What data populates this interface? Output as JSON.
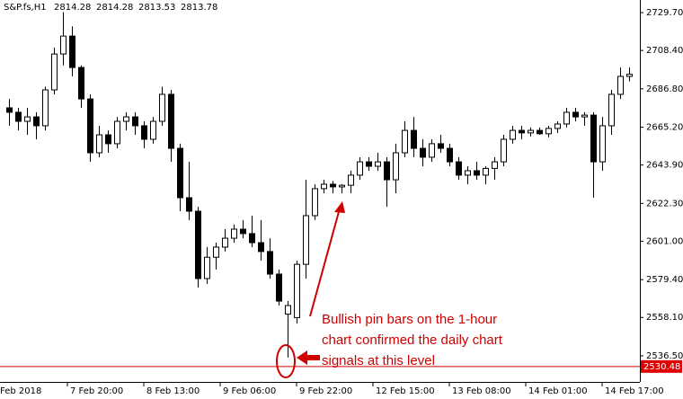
{
  "chart_data": {
    "type": "candlestick",
    "symbol": "S&P.fs,H1",
    "header_values": [
      2814.28,
      2814.28,
      2813.53,
      2813.78
    ],
    "open": [
      2676.1,
      2673.6,
      2668.5,
      2671.0,
      2666.0,
      2686.2,
      2706.4,
      2716.5,
      2698.8,
      2681.1,
      2650.8,
      2660.9,
      2655.9,
      2668.5,
      2671.0,
      2666.0,
      2658.4,
      2668.5,
      2683.7,
      2653.3,
      2625.5,
      2617.9,
      2580.0,
      2592.0,
      2597.7,
      2602.7,
      2607.8,
      2605.3,
      2600.2,
      2595.2,
      2582.5,
      2560.0,
      2558.0,
      2588.0,
      2615.4,
      2630.6,
      2633.1,
      2631.6,
      2632.5,
      2638.2,
      2645.7,
      2643.2,
      2645.7,
      2635.6,
      2650.8,
      2663.4,
      2653.3,
      2648.3,
      2655.9,
      2653.3,
      2645.7,
      2638.2,
      2640.7,
      2638.2,
      2642.0,
      2645.7,
      2658.4,
      2663.4,
      2662.0,
      2663.4,
      2661.5,
      2664.5,
      2667.0,
      2673.6,
      2671.0,
      2672.0,
      2645.7,
      2666.0,
      2683.7,
      2693.8
    ],
    "high": [
      2681.1,
      2676.1,
      2676.1,
      2673.6,
      2688.0,
      2710.0,
      2730.0,
      2722.0,
      2700.0,
      2683.7,
      2666.0,
      2663.4,
      2671.0,
      2673.6,
      2673.6,
      2668.5,
      2671.0,
      2688.0,
      2686.2,
      2655.9,
      2645.7,
      2620.4,
      2597.7,
      2600.2,
      2607.8,
      2610.3,
      2612.9,
      2615.4,
      2612.9,
      2602.7,
      2585.1,
      2567.3,
      2590.0,
      2635.6,
      2633.1,
      2635.6,
      2635.0,
      2633.1,
      2640.7,
      2648.3,
      2648.3,
      2650.8,
      2648.3,
      2655.9,
      2668.5,
      2671.0,
      2658.4,
      2658.4,
      2660.9,
      2655.9,
      2648.3,
      2643.2,
      2645.7,
      2643.2,
      2648.3,
      2660.9,
      2666.0,
      2666.0,
      2665.0,
      2665.0,
      2666.0,
      2668.5,
      2676.1,
      2676.1,
      2673.6,
      2673.6,
      2671.0,
      2686.2,
      2698.8,
      2698.8
    ],
    "low": [
      2666.0,
      2663.4,
      2660.9,
      2658.4,
      2663.4,
      2683.7,
      2700.0,
      2693.8,
      2676.1,
      2645.7,
      2648.3,
      2650.8,
      2653.3,
      2663.4,
      2660.9,
      2653.3,
      2655.9,
      2666.0,
      2645.7,
      2617.9,
      2612.9,
      2574.9,
      2577.0,
      2585.1,
      2595.2,
      2600.2,
      2602.7,
      2597.7,
      2590.1,
      2580.0,
      2564.8,
      2535.5,
      2554.7,
      2580.0,
      2612.9,
      2628.0,
      2628.0,
      2628.0,
      2628.0,
      2635.6,
      2640.7,
      2640.7,
      2620.4,
      2628.0,
      2648.3,
      2648.3,
      2643.2,
      2645.7,
      2650.8,
      2643.2,
      2635.6,
      2633.1,
      2635.6,
      2633.1,
      2635.6,
      2643.2,
      2655.9,
      2658.4,
      2660.0,
      2660.9,
      2659.5,
      2662.0,
      2665.0,
      2668.5,
      2666.0,
      2625.5,
      2640.7,
      2660.9,
      2681.1,
      2691.0
    ],
    "close": [
      2673.6,
      2668.5,
      2671.0,
      2666.0,
      2686.2,
      2706.4,
      2716.5,
      2698.8,
      2681.1,
      2650.8,
      2660.9,
      2655.9,
      2668.5,
      2671.0,
      2666.0,
      2658.4,
      2668.5,
      2683.7,
      2653.3,
      2625.5,
      2617.9,
      2580.0,
      2592.0,
      2597.7,
      2602.7,
      2607.8,
      2605.3,
      2600.2,
      2595.2,
      2582.5,
      2567.3,
      2564.8,
      2588.0,
      2615.4,
      2630.6,
      2633.1,
      2631.6,
      2632.5,
      2638.2,
      2645.7,
      2643.2,
      2645.7,
      2635.6,
      2650.8,
      2663.4,
      2653.3,
      2648.3,
      2655.9,
      2653.3,
      2645.7,
      2638.2,
      2640.7,
      2638.2,
      2642.0,
      2645.7,
      2658.4,
      2663.4,
      2662.0,
      2663.4,
      2661.5,
      2664.5,
      2667.0,
      2673.6,
      2671.0,
      2672.0,
      2645.7,
      2666.0,
      2683.7,
      2693.8,
      2695.0
    ],
    "xlim": [
      -1,
      70.2
    ],
    "xticks": [
      {
        "value": -2,
        "label": "Feb 2018"
      },
      {
        "value": 6.5,
        "label": "7 Feb 20:00"
      },
      {
        "value": 15,
        "label": "8 Feb 13:00"
      },
      {
        "value": 23.5,
        "label": "9 Feb 06:00"
      },
      {
        "value": 32,
        "label": "9 Feb 22:00"
      },
      {
        "value": 40.5,
        "label": "12 Feb 15:00"
      },
      {
        "value": 49,
        "label": "13 Feb 08:00"
      },
      {
        "value": 57.5,
        "label": "14 Feb 01:00"
      },
      {
        "value": 66,
        "label": "14 Feb 17:00"
      }
    ],
    "ylim": [
      2521.8,
      2736.8
    ],
    "yticks": [
      {
        "value": 2729.7,
        "label": "2729.70"
      },
      {
        "value": 2708.4,
        "label": "2708.40"
      },
      {
        "value": 2686.8,
        "label": "2686.80"
      },
      {
        "value": 2665.2,
        "label": "2665.20"
      },
      {
        "value": 2643.9,
        "label": "2643.90"
      },
      {
        "value": 2622.3,
        "label": "2622.30"
      },
      {
        "value": 2601,
        "label": "2601.00"
      },
      {
        "value": 2579.4,
        "label": "2579.40"
      },
      {
        "value": 2558.1,
        "label": "2558.10"
      },
      {
        "value": 2536.5,
        "label": "2536.50"
      }
    ],
    "price_line": 2530.48,
    "up_color": "#ffffff",
    "down_color": "#000000",
    "line_color": "#e00000",
    "annotation": [
      "Bullish pin bars on the 1-hour",
      "chart confirmed the daily chart",
      "signals at this level"
    ]
  }
}
